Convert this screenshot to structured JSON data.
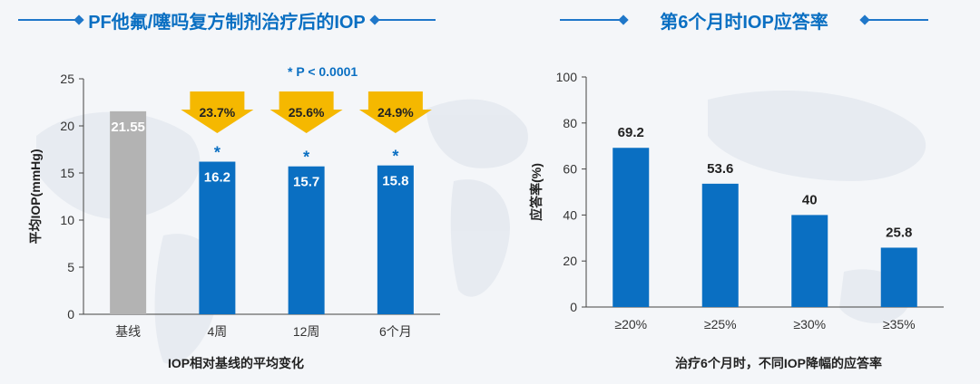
{
  "left_panel": {
    "title": "PF他氟/噻吗复方制剂治疗后的IOP",
    "significance": "* P < 0.0001"
  },
  "right_panel": {
    "title": "第6个月时IOP应答率"
  },
  "colors": {
    "baseline_bar": "#b3b3b3",
    "blue_bar": "#0a6fc2",
    "arrow_fill": "#f5b800",
    "title_blue": "#0a6fc2"
  },
  "chart_data": [
    {
      "type": "bar",
      "title": "PF他氟/噻吗复方制剂治疗后的IOP",
      "xlabel": "IOP相对基线的平均变化",
      "ylabel": "平均IOP(mmHg)",
      "ylim": [
        0,
        25
      ],
      "yticks": [
        "0",
        "5",
        "10",
        "15",
        "20",
        "25"
      ],
      "categories": [
        "基线",
        "4周",
        "12周",
        "6个月"
      ],
      "values": [
        21.55,
        16.2,
        15.7,
        15.8
      ],
      "value_labels": [
        "21.55",
        "16.2",
        "15.7",
        "15.8"
      ],
      "reduction_labels": [
        "",
        "23.7%",
        "25.6%",
        "24.9%"
      ],
      "significance_marks": [
        "",
        "*",
        "*",
        "*"
      ],
      "grid": false
    },
    {
      "type": "bar",
      "title": "第6个月时IOP应答率",
      "xlabel": "治疗6个月时，不同IOP降幅的应答率",
      "ylabel": "应答率(%)",
      "ylim": [
        0,
        100
      ],
      "yticks": [
        "0",
        "20",
        "40",
        "60",
        "80",
        "100"
      ],
      "categories": [
        "≥20%",
        "≥25%",
        "≥30%",
        "≥35%"
      ],
      "values": [
        69.2,
        53.6,
        40,
        25.8
      ],
      "value_labels": [
        "69.2",
        "53.6",
        "40",
        "25.8"
      ],
      "grid": false
    }
  ]
}
